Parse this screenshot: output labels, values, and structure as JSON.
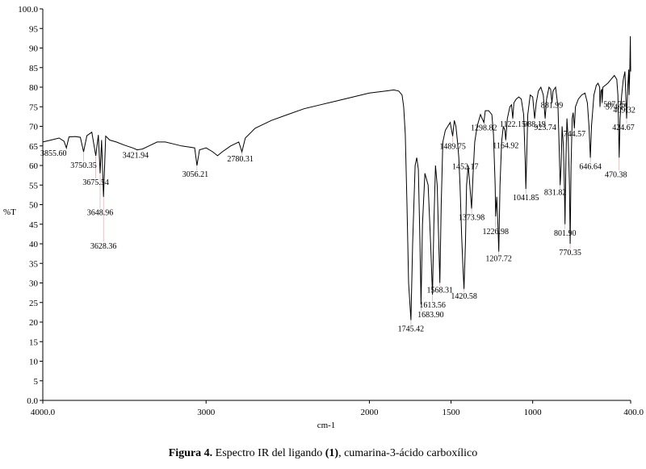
{
  "chart_data": {
    "type": "line",
    "xlabel": "cm-1",
    "ylabel": "%T",
    "xlim": [
      4000.0,
      400.0
    ],
    "ylim": [
      0.0,
      100.0
    ],
    "x_reversed": true,
    "grid": false,
    "x_ticks": [
      {
        "value": 4000,
        "label": "4000.0"
      },
      {
        "value": 3000,
        "label": "3000"
      },
      {
        "value": 2000,
        "label": "2000"
      },
      {
        "value": 1500,
        "label": "1500"
      },
      {
        "value": 1000,
        "label": "1000"
      },
      {
        "value": 400,
        "label": "400.0"
      }
    ],
    "y_ticks": [
      {
        "value": 0,
        "label": "0.0"
      },
      {
        "value": 5,
        "label": "5"
      },
      {
        "value": 10,
        "label": "10"
      },
      {
        "value": 15,
        "label": "15"
      },
      {
        "value": 20,
        "label": "20"
      },
      {
        "value": 25,
        "label": "25"
      },
      {
        "value": 30,
        "label": "30"
      },
      {
        "value": 35,
        "label": "35"
      },
      {
        "value": 40,
        "label": "40"
      },
      {
        "value": 45,
        "label": "45"
      },
      {
        "value": 50,
        "label": "50"
      },
      {
        "value": 55,
        "label": "55"
      },
      {
        "value": 60,
        "label": "60"
      },
      {
        "value": 65,
        "label": "65"
      },
      {
        "value": 70,
        "label": "70"
      },
      {
        "value": 75,
        "label": "75"
      },
      {
        "value": 80,
        "label": "80"
      },
      {
        "value": 85,
        "label": "85"
      },
      {
        "value": 90,
        "label": "90"
      },
      {
        "value": 95,
        "label": "95"
      },
      {
        "value": 100,
        "label": "100.0"
      }
    ],
    "series": [
      {
        "color": "#000000",
        "points": [
          [
            4000,
            66
          ],
          [
            3950,
            66.5
          ],
          [
            3900,
            67
          ],
          [
            3870,
            66.2
          ],
          [
            3855.6,
            64.5
          ],
          [
            3840,
            67.3
          ],
          [
            3800,
            67.4
          ],
          [
            3770,
            67.2
          ],
          [
            3750.35,
            63.5
          ],
          [
            3730,
            67.6
          ],
          [
            3700,
            68.5
          ],
          [
            3675.54,
            62.5
          ],
          [
            3660,
            67.8
          ],
          [
            3648.96,
            58
          ],
          [
            3640,
            66.5
          ],
          [
            3628.36,
            52
          ],
          [
            3615,
            67.5
          ],
          [
            3590,
            66.5
          ],
          [
            3550,
            66
          ],
          [
            3500,
            65.2
          ],
          [
            3450,
            64.5
          ],
          [
            3421.94,
            64
          ],
          [
            3390,
            64.2
          ],
          [
            3350,
            65
          ],
          [
            3300,
            66
          ],
          [
            3250,
            66
          ],
          [
            3200,
            65.5
          ],
          [
            3150,
            65
          ],
          [
            3100,
            64.7
          ],
          [
            3070,
            64.5
          ],
          [
            3056.21,
            60
          ],
          [
            3040,
            64
          ],
          [
            3000,
            64.5
          ],
          [
            2960,
            63.5
          ],
          [
            2930,
            62.5
          ],
          [
            2900,
            63.5
          ],
          [
            2850,
            65
          ],
          [
            2800,
            66
          ],
          [
            2780.31,
            63.5
          ],
          [
            2760,
            67
          ],
          [
            2700,
            69.5
          ],
          [
            2600,
            71.5
          ],
          [
            2500,
            73
          ],
          [
            2400,
            74.5
          ],
          [
            2300,
            75.5
          ],
          [
            2200,
            76.5
          ],
          [
            2100,
            77.5
          ],
          [
            2000,
            78.5
          ],
          [
            1900,
            79
          ],
          [
            1850,
            79.3
          ],
          [
            1820,
            79
          ],
          [
            1800,
            78
          ],
          [
            1790,
            75
          ],
          [
            1780,
            68
          ],
          [
            1770,
            50
          ],
          [
            1760,
            30
          ],
          [
            1745.42,
            20.5
          ],
          [
            1735,
            40
          ],
          [
            1720,
            60
          ],
          [
            1710,
            62
          ],
          [
            1700,
            59
          ],
          [
            1690,
            40
          ],
          [
            1683.9,
            24.5
          ],
          [
            1675,
            45
          ],
          [
            1660,
            58
          ],
          [
            1640,
            55
          ],
          [
            1625,
            40
          ],
          [
            1613.56,
            27
          ],
          [
            1605,
            45
          ],
          [
            1595,
            60
          ],
          [
            1585,
            55
          ],
          [
            1575,
            40
          ],
          [
            1568.31,
            30
          ],
          [
            1560,
            50
          ],
          [
            1550,
            66
          ],
          [
            1535,
            69
          ],
          [
            1520,
            70
          ],
          [
            1505,
            71
          ],
          [
            1489.75,
            67.5
          ],
          [
            1480,
            71.5
          ],
          [
            1470,
            70
          ],
          [
            1460,
            66
          ],
          [
            1452.17,
            62
          ],
          [
            1445,
            55
          ],
          [
            1435,
            42
          ],
          [
            1428,
            35
          ],
          [
            1420.58,
            28.5
          ],
          [
            1412,
            40
          ],
          [
            1405,
            55
          ],
          [
            1395,
            60
          ],
          [
            1385,
            55
          ],
          [
            1373.98,
            49
          ],
          [
            1365,
            58
          ],
          [
            1355,
            66
          ],
          [
            1340,
            70
          ],
          [
            1320,
            73
          ],
          [
            1298.82,
            71
          ],
          [
            1290,
            74
          ],
          [
            1270,
            74
          ],
          [
            1250,
            73
          ],
          [
            1240,
            68
          ],
          [
            1230,
            55
          ],
          [
            1226.98,
            47
          ],
          [
            1220,
            52
          ],
          [
            1213,
            45
          ],
          [
            1207.72,
            38
          ],
          [
            1200,
            55
          ],
          [
            1190,
            66
          ],
          [
            1180,
            70
          ],
          [
            1170,
            69
          ],
          [
            1164.92,
            66.5
          ],
          [
            1155,
            72
          ],
          [
            1140,
            75
          ],
          [
            1130,
            75.5
          ],
          [
            1122.15,
            72
          ],
          [
            1115,
            76
          ],
          [
            1100,
            77
          ],
          [
            1085,
            77.5
          ],
          [
            1070,
            77
          ],
          [
            1055,
            73
          ],
          [
            1045,
            60
          ],
          [
            1041.85,
            54
          ],
          [
            1038,
            60
          ],
          [
            1030,
            73
          ],
          [
            1015,
            78
          ],
          [
            1000,
            77.5
          ],
          [
            988.19,
            72
          ],
          [
            978,
            76
          ],
          [
            965,
            79
          ],
          [
            950,
            80
          ],
          [
            935,
            78
          ],
          [
            923.74,
            72
          ],
          [
            915,
            77
          ],
          [
            900,
            80
          ],
          [
            890,
            79.5
          ],
          [
            881.99,
            76
          ],
          [
            875,
            79
          ],
          [
            860,
            80
          ],
          [
            845,
            75
          ],
          [
            838,
            65
          ],
          [
            831.82,
            55
          ],
          [
            826,
            60
          ],
          [
            820,
            70
          ],
          [
            812,
            65
          ],
          [
            806,
            55
          ],
          [
            801.9,
            45
          ],
          [
            797,
            60
          ],
          [
            790,
            72
          ],
          [
            782,
            66
          ],
          [
            775,
            55
          ],
          [
            770.35,
            40
          ],
          [
            765,
            60
          ],
          [
            758,
            72
          ],
          [
            752,
            73.5
          ],
          [
            744.57,
            69.5
          ],
          [
            738,
            75
          ],
          [
            720,
            77
          ],
          [
            700,
            78
          ],
          [
            680,
            78.5
          ],
          [
            665,
            76
          ],
          [
            655,
            70
          ],
          [
            646.64,
            62
          ],
          [
            640,
            70
          ],
          [
            625,
            78
          ],
          [
            610,
            80.5
          ],
          [
            600,
            81
          ],
          [
            590,
            80
          ],
          [
            587.75,
            75
          ],
          [
            582,
            79
          ],
          [
            577,
            79.5
          ],
          [
            574.75,
            76
          ],
          [
            570,
            80
          ],
          [
            555,
            80.5
          ],
          [
            540,
            81
          ],
          [
            520,
            82
          ],
          [
            500,
            83
          ],
          [
            485,
            82
          ],
          [
            478,
            78
          ],
          [
            470.38,
            62
          ],
          [
            465,
            72
          ],
          [
            455,
            78
          ],
          [
            445,
            82
          ],
          [
            435,
            84
          ],
          [
            424.67,
            72
          ],
          [
            418,
            80
          ],
          [
            412,
            84.5
          ],
          [
            409.32,
            78
          ],
          [
            405,
            85
          ],
          [
            402,
            93
          ],
          [
            400,
            84
          ]
        ]
      }
    ],
    "peaks": [
      {
        "x": 3855.6,
        "y": 64.5,
        "label": "3855.60"
      },
      {
        "x": 3750.35,
        "y": 63.5,
        "label": "3750.35"
      },
      {
        "x": 3675.54,
        "y": 62.5,
        "label": "3675.54"
      },
      {
        "x": 3648.96,
        "y": 58,
        "label": "3648.96"
      },
      {
        "x": 3628.36,
        "y": 52,
        "label": "3628.36"
      },
      {
        "x": 3421.94,
        "y": 64,
        "label": "3421.94"
      },
      {
        "x": 3056.21,
        "y": 60,
        "label": "3056.21"
      },
      {
        "x": 2780.31,
        "y": 63.5,
        "label": "2780.31"
      },
      {
        "x": 1745.42,
        "y": 20.5,
        "label": "1745.42"
      },
      {
        "x": 1683.9,
        "y": 24.5,
        "label": "1683.90"
      },
      {
        "x": 1613.56,
        "y": 27,
        "label": "1613.56"
      },
      {
        "x": 1568.31,
        "y": 30,
        "label": "1568.31"
      },
      {
        "x": 1489.75,
        "y": 67.5,
        "label": "1489.75"
      },
      {
        "x": 1452.17,
        "y": 62,
        "label": "1452.17"
      },
      {
        "x": 1420.58,
        "y": 28.5,
        "label": "1420.58"
      },
      {
        "x": 1373.98,
        "y": 49,
        "label": "1373.98"
      },
      {
        "x": 1298.82,
        "y": 71,
        "label": "1298.82"
      },
      {
        "x": 1226.98,
        "y": 47,
        "label": "1226.98"
      },
      {
        "x": 1207.72,
        "y": 38,
        "label": "1207.72"
      },
      {
        "x": 1164.92,
        "y": 66.5,
        "label": "1164.92"
      },
      {
        "x": 1122.15,
        "y": 72,
        "label": "1122.15"
      },
      {
        "x": 1041.85,
        "y": 54,
        "label": "1041.85"
      },
      {
        "x": 988.19,
        "y": 72,
        "label": "988.19"
      },
      {
        "x": 923.74,
        "y": 72,
        "label": "923.74"
      },
      {
        "x": 881.99,
        "y": 76,
        "label": "881.99"
      },
      {
        "x": 831.82,
        "y": 55,
        "label": "831.82"
      },
      {
        "x": 801.9,
        "y": 45,
        "label": "801.90"
      },
      {
        "x": 770.35,
        "y": 40,
        "label": "770.35"
      },
      {
        "x": 744.57,
        "y": 69.5,
        "label": "744.57"
      },
      {
        "x": 646.64,
        "y": 62,
        "label": "646.64"
      },
      {
        "x": 587.75,
        "y": 75,
        "label": "587.75"
      },
      {
        "x": 574.75,
        "y": 76,
        "label": "574.75"
      },
      {
        "x": 470.38,
        "y": 62,
        "label": "470.38"
      },
      {
        "x": 424.67,
        "y": 72,
        "label": "424.67"
      },
      {
        "x": 409.32,
        "y": 78,
        "label": "409.32"
      }
    ]
  },
  "caption": {
    "figure_label": "Figura 4.",
    "text_before": " Espectro IR del ligando ",
    "compound_number": "(1)",
    "text_after": ", cumarina-3-ácido carboxílico"
  }
}
